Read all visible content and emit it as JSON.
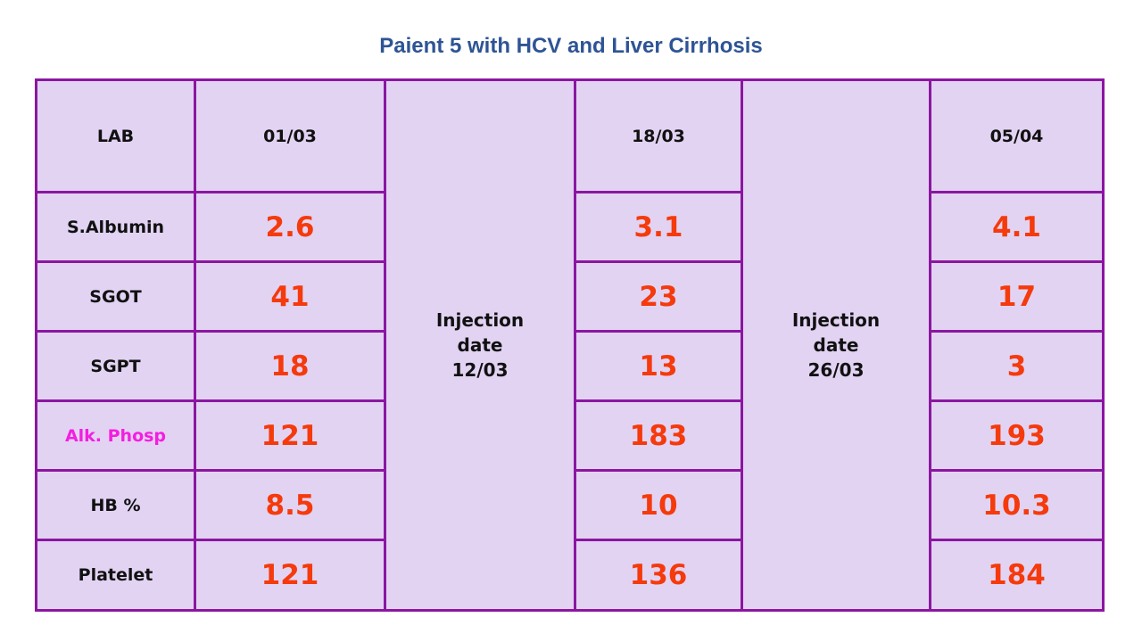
{
  "title": "Paient 5 with HCV and Liver Cirrhosis",
  "table": {
    "corner_label": "LAB",
    "dates": [
      "01/03",
      "18/03",
      "05/04"
    ],
    "injections": [
      {
        "line1": "Injection",
        "line2": "date",
        "line3": "12/03"
      },
      {
        "line1": "Injection",
        "line2": "date",
        "line3": "26/03"
      }
    ],
    "rows": [
      {
        "label": "S.Albumin",
        "values": [
          "2.6",
          "3.1",
          "4.1"
        ]
      },
      {
        "label": "SGOT",
        "values": [
          "41",
          "23",
          "17"
        ]
      },
      {
        "label": "SGPT",
        "values": [
          "18",
          "13",
          "3"
        ]
      },
      {
        "label": "Alk. Phosp",
        "values": [
          "121",
          "183",
          "193"
        ],
        "label_color": "#F41EE0"
      },
      {
        "label": "HB %",
        "values": [
          "8.5",
          "10",
          "10.3"
        ]
      },
      {
        "label": "Platelet",
        "values": [
          "121",
          "136",
          "184"
        ]
      }
    ]
  },
  "colors": {
    "title": "#2E5495",
    "border": "#8B16A0",
    "cell_background": "#E2D3F3",
    "value_text": "#F53A0C",
    "highlight_label": "#F41EE0"
  }
}
